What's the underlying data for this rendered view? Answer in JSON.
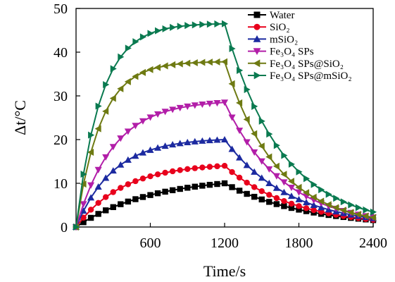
{
  "chart_data": {
    "type": "line",
    "title": "",
    "xlabel": "Time/s",
    "ylabel": "Δt/°C",
    "xlim": [
      0,
      2400
    ],
    "ylim": [
      0,
      50
    ],
    "xticks": [
      600,
      1200,
      1800,
      2400
    ],
    "yticks": [
      0,
      10,
      20,
      30,
      40,
      50
    ],
    "grid": false,
    "legend_position": "top-right",
    "series": [
      {
        "name": "Water",
        "color": "#000000",
        "marker": "square",
        "rise_end": 10,
        "rise_tau": 600,
        "decay_tau": 650,
        "x": [
          0,
          60,
          120,
          180,
          240,
          300,
          360,
          420,
          480,
          540,
          600,
          660,
          720,
          780,
          840,
          900,
          960,
          1020,
          1080,
          1140,
          1200,
          1260,
          1320,
          1380,
          1440,
          1500,
          1560,
          1620,
          1680,
          1740,
          1800,
          1860,
          1920,
          1980,
          2040,
          2100,
          2160,
          2220,
          2280,
          2340,
          2400
        ]
      },
      {
        "name": "SiO₂",
        "color": "#e8001c",
        "marker": "circle",
        "rise_end": 14,
        "rise_tau": 380,
        "decay_tau": 560,
        "x": [
          0,
          60,
          120,
          180,
          240,
          300,
          360,
          420,
          480,
          540,
          600,
          660,
          720,
          780,
          840,
          900,
          960,
          1020,
          1080,
          1140,
          1200,
          1260,
          1320,
          1380,
          1440,
          1500,
          1560,
          1620,
          1680,
          1740,
          1800,
          1860,
          1920,
          1980,
          2040,
          2100,
          2160,
          2220,
          2280,
          2340,
          2400
        ]
      },
      {
        "name": "mSiO₂",
        "color": "#1c2aa0",
        "marker": "triangle-up",
        "rise_end": 20,
        "rise_tau": 300,
        "decay_tau": 520,
        "x": [
          0,
          60,
          120,
          180,
          240,
          300,
          360,
          420,
          480,
          540,
          600,
          660,
          720,
          780,
          840,
          900,
          960,
          1020,
          1080,
          1140,
          1200,
          1260,
          1320,
          1380,
          1440,
          1500,
          1560,
          1620,
          1680,
          1740,
          1800,
          1860,
          1920,
          1980,
          2040,
          2100,
          2160,
          2220,
          2280,
          2340,
          2400
        ]
      },
      {
        "name": "Fe₃O₄ SPs",
        "color": "#b21ea8",
        "marker": "triangle-down",
        "rise_end": 28.5,
        "rise_tau": 300,
        "decay_tau": 470,
        "x": [
          0,
          60,
          120,
          180,
          240,
          300,
          360,
          420,
          480,
          540,
          600,
          660,
          720,
          780,
          840,
          900,
          960,
          1020,
          1080,
          1140,
          1200,
          1260,
          1320,
          1380,
          1440,
          1500,
          1560,
          1620,
          1680,
          1740,
          1800,
          1860,
          1920,
          1980,
          2040,
          2100,
          2160,
          2220,
          2280,
          2340,
          2400
        ]
      },
      {
        "name": "Fe₃O₄ SPs@SiO₂",
        "color": "#6e7a12",
        "marker": "triangle-left",
        "rise_end": 37.8,
        "rise_tau": 200,
        "decay_tau": 420,
        "x": [
          0,
          60,
          120,
          180,
          240,
          300,
          360,
          420,
          480,
          540,
          600,
          660,
          720,
          780,
          840,
          900,
          960,
          1020,
          1080,
          1140,
          1200,
          1260,
          1320,
          1380,
          1440,
          1500,
          1560,
          1620,
          1680,
          1740,
          1800,
          1860,
          1920,
          1980,
          2040,
          2100,
          2160,
          2220,
          2280,
          2340,
          2400
        ]
      },
      {
        "name": "Fe₃O₄ SPs@mSiO₂",
        "color": "#0a7a50",
        "marker": "triangle-right",
        "rise_end": 46.5,
        "rise_tau": 200,
        "decay_tau": 460,
        "x": [
          0,
          60,
          120,
          180,
          240,
          300,
          360,
          420,
          480,
          540,
          600,
          660,
          720,
          780,
          840,
          900,
          960,
          1020,
          1080,
          1140,
          1200,
          1260,
          1320,
          1380,
          1440,
          1500,
          1560,
          1620,
          1680,
          1740,
          1800,
          1860,
          1920,
          1980,
          2040,
          2100,
          2160,
          2220,
          2280,
          2340,
          2400
        ]
      }
    ]
  }
}
